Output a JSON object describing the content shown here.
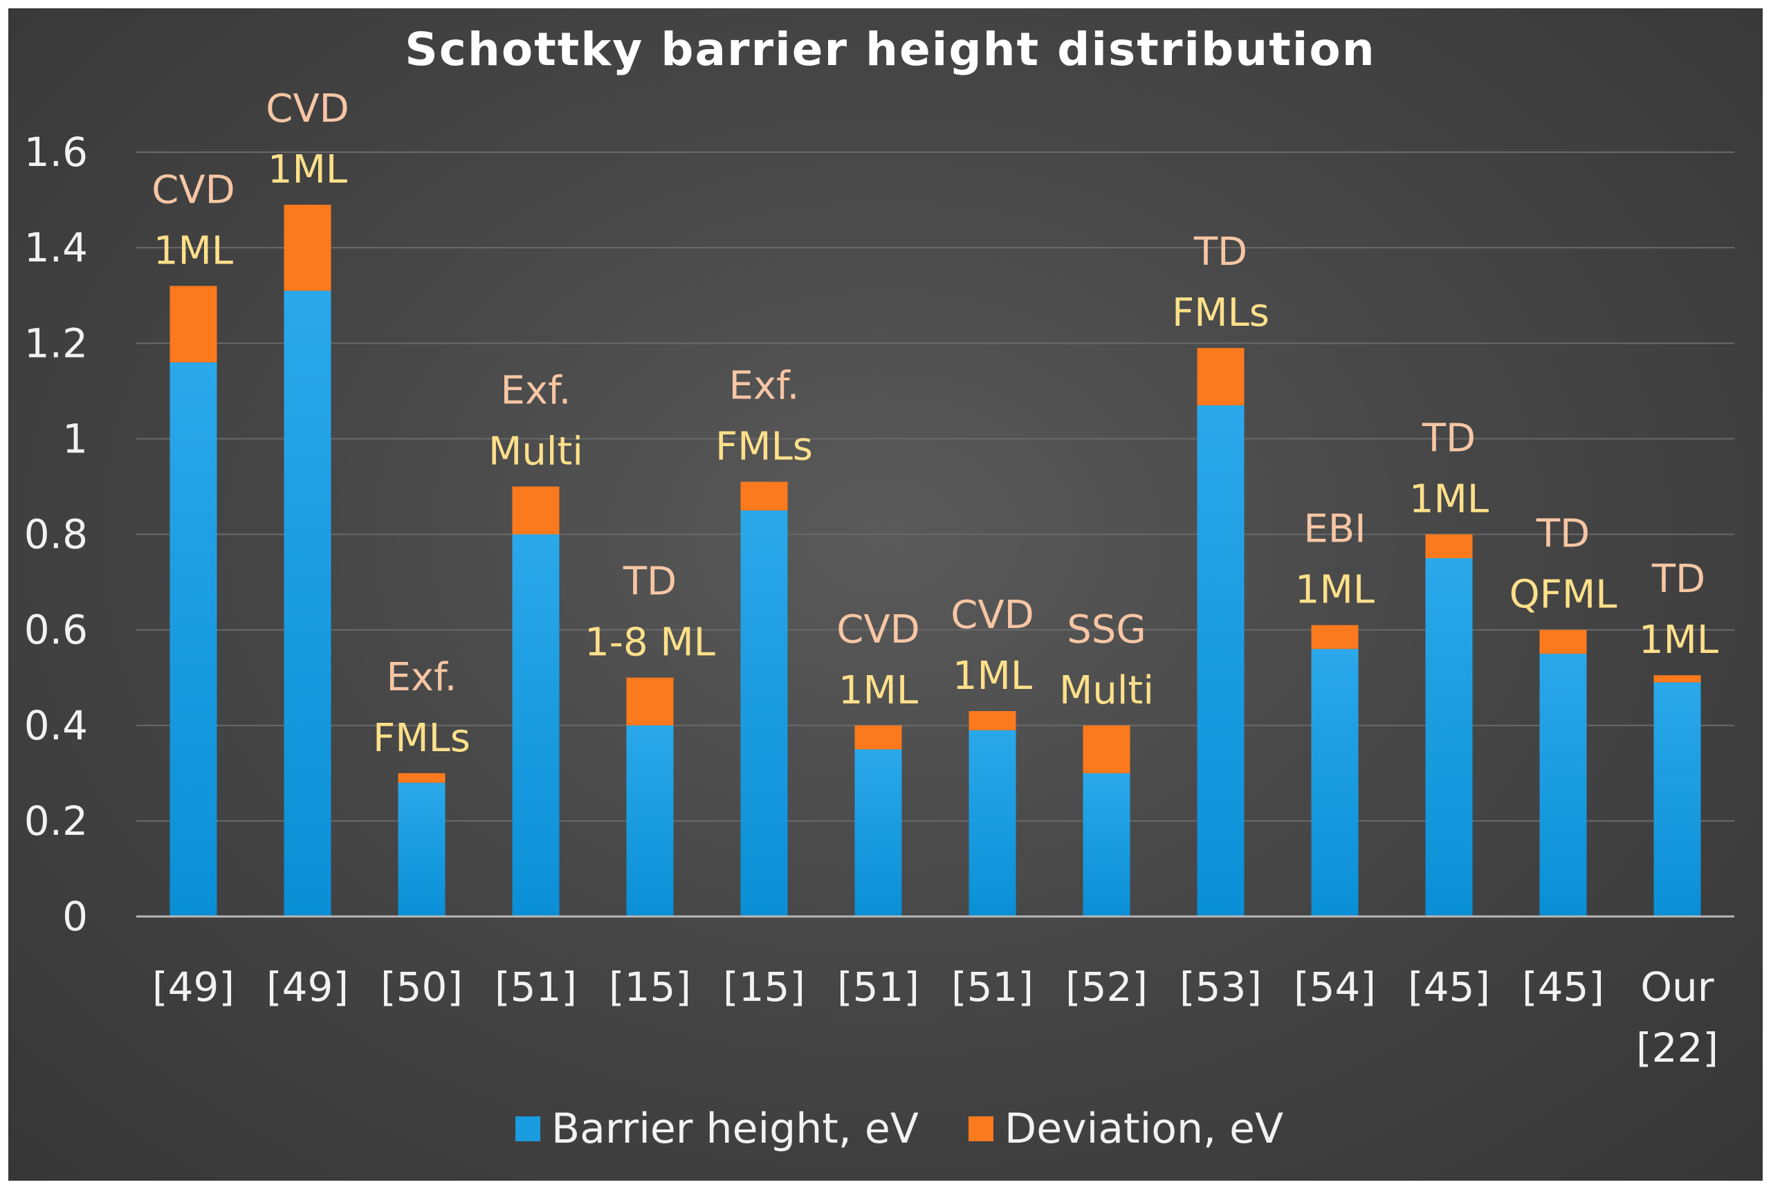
{
  "chart_data": {
    "type": "bar",
    "stacked": true,
    "title": "Schottky barrier height distribution",
    "xlabel": "",
    "ylabel": "",
    "ylim": [
      0,
      1.6
    ],
    "yticks": [
      "0",
      "0.2",
      "0.4",
      "0.6",
      "0.8",
      "1",
      "1.2",
      "1.4",
      "1.6"
    ],
    "ytick_values": [
      0,
      0.2,
      0.4,
      0.6,
      0.8,
      1.0,
      1.2,
      1.4,
      1.6
    ],
    "grid": true,
    "legend_position": "bottom",
    "categories": [
      [
        "[49]"
      ],
      [
        "[49]"
      ],
      [
        "[50]"
      ],
      [
        "[51]"
      ],
      [
        "[15]"
      ],
      [
        "[15]"
      ],
      [
        "[51]"
      ],
      [
        "[51]"
      ],
      [
        "[52]"
      ],
      [
        "[53]"
      ],
      [
        "[54]"
      ],
      [
        "[45]"
      ],
      [
        "[45]"
      ],
      [
        "Our",
        "[22]"
      ]
    ],
    "annotations": [
      [
        "CVD",
        "1ML"
      ],
      [
        "CVD",
        "1ML"
      ],
      [
        "Exf.",
        "FMLs"
      ],
      [
        "Exf.",
        "Multi"
      ],
      [
        "TD",
        "1-8 ML"
      ],
      [
        "Exf.",
        "FMLs"
      ],
      [
        "CVD",
        "1ML"
      ],
      [
        "CVD",
        "1ML"
      ],
      [
        "SSG",
        "Multi"
      ],
      [
        "TD",
        "FMLs"
      ],
      [
        "EBI",
        "1ML"
      ],
      [
        "TD",
        "1ML"
      ],
      [
        "TD",
        "QFML"
      ],
      [
        "TD",
        "1ML"
      ]
    ],
    "series": [
      {
        "name": "Barrier height, eV",
        "color": "#1a9de0",
        "values": [
          1.16,
          1.31,
          0.28,
          0.8,
          0.4,
          0.85,
          0.35,
          0.39,
          0.3,
          1.07,
          0.56,
          0.75,
          0.55,
          0.49
        ]
      },
      {
        "name": "Deviation, eV",
        "color": "#fb7a1e",
        "values": [
          0.16,
          0.18,
          0.02,
          0.1,
          0.1,
          0.06,
          0.05,
          0.04,
          0.1,
          0.12,
          0.05,
          0.05,
          0.05,
          0.015
        ]
      }
    ]
  }
}
